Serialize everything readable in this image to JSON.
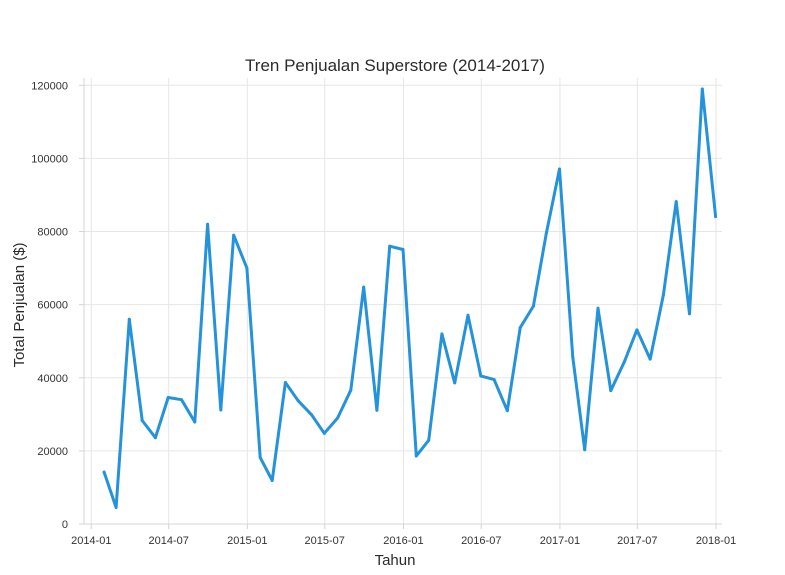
{
  "chart_data": {
    "type": "line",
    "title": "Tren Penjualan Superstore (2014-2017)",
    "xlabel": "Tahun",
    "ylabel": "Total Penjualan ($)",
    "x_tick_labels": [
      "2014-01",
      "2014-07",
      "2015-01",
      "2015-07",
      "2016-01",
      "2016-07",
      "2017-01",
      "2017-07",
      "2018-01"
    ],
    "y_tick_labels": [
      "0",
      "20000",
      "40000",
      "60000",
      "80000",
      "100000",
      "120000"
    ],
    "y_ticks": [
      0,
      20000,
      40000,
      60000,
      80000,
      100000,
      120000
    ],
    "ylim": [
      0,
      122000
    ],
    "xlim": [
      "2013-12-15",
      "2018-01-15"
    ],
    "grid": true,
    "line_color": "#2493d9",
    "series": [
      {
        "x": [
          "2014-01-31",
          "2014-02-28",
          "2014-03-31",
          "2014-04-30",
          "2014-05-31",
          "2014-06-30",
          "2014-07-31",
          "2014-08-31",
          "2014-09-30",
          "2014-10-31",
          "2014-11-30",
          "2014-12-31",
          "2015-01-31",
          "2015-02-28",
          "2015-03-31",
          "2015-04-30",
          "2015-05-31",
          "2015-06-30",
          "2015-07-31",
          "2015-08-31",
          "2015-09-30",
          "2015-10-31",
          "2015-11-30",
          "2015-12-31",
          "2016-01-31",
          "2016-02-29",
          "2016-03-31",
          "2016-04-30",
          "2016-05-31",
          "2016-06-30",
          "2016-07-31",
          "2016-08-31",
          "2016-09-30",
          "2016-10-31",
          "2016-11-30",
          "2016-12-31",
          "2017-01-31",
          "2017-02-28",
          "2017-03-31",
          "2017-04-30",
          "2017-05-31",
          "2017-06-30",
          "2017-07-31",
          "2017-08-31",
          "2017-09-30",
          "2017-10-31",
          "2017-11-30",
          "2017-12-31"
        ],
        "values": [
          14200,
          4500,
          56000,
          28300,
          23600,
          34600,
          34000,
          27900,
          82000,
          31200,
          79000,
          70000,
          18200,
          11900,
          38700,
          33700,
          29900,
          24800,
          29000,
          36600,
          64800,
          31100,
          76000,
          75100,
          18600,
          22900,
          52000,
          38600,
          57100,
          40500,
          39500,
          31000,
          53700,
          59600,
          79500,
          97100,
          45600,
          20300,
          59000,
          36500,
          44200,
          53100,
          45100,
          62700,
          88200,
          57500,
          119000,
          84100
        ]
      }
    ]
  }
}
